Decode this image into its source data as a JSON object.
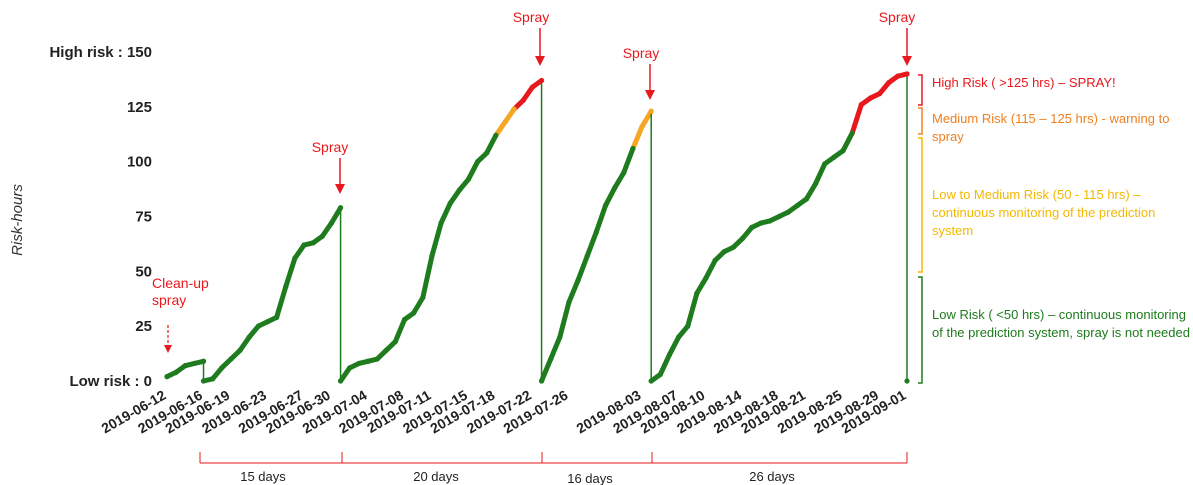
{
  "chart_data": {
    "type": "line",
    "y_label": "Risk-hours",
    "ylim": [
      0,
      150
    ],
    "yticks": [
      {
        "value": 0,
        "label": "Low risk : 0"
      },
      25,
      50,
      75,
      100,
      125,
      {
        "value": 150,
        "label": "High risk : 150"
      }
    ],
    "xlim": [
      "2019-06-12",
      "2019-09-01"
    ],
    "xticks": [
      "2019-06-12",
      "2019-06-16",
      "2019-06-19",
      "2019-06-23",
      "2019-06-27",
      "2019-06-30",
      "2019-07-04",
      "2019-07-08",
      "2019-07-11",
      "2019-07-15",
      "2019-07-18",
      "2019-07-22",
      "2019-07-26",
      "2019-08-03",
      "2019-08-07",
      "2019-08-10",
      "2019-08-14",
      "2019-08-18",
      "2019-08-21",
      "2019-08-25",
      "2019-08-29",
      "2019-09-01"
    ],
    "color": "#1e7b1e",
    "thresholds": [
      {
        "value": 115,
        "color": "#f5a623"
      },
      {
        "value": 125,
        "color": "#e8191e"
      }
    ],
    "x": [
      "2019-06-12",
      "2019-06-13",
      "2019-06-14",
      "2019-06-15",
      "2019-06-16",
      "2019-06-16",
      "2019-06-17",
      "2019-06-18",
      "2019-06-19",
      "2019-06-20",
      "2019-06-21",
      "2019-06-22",
      "2019-06-23",
      "2019-06-24",
      "2019-06-25",
      "2019-06-26",
      "2019-06-27",
      "2019-06-28",
      "2019-06-29",
      "2019-06-30",
      "2019-07-01",
      "2019-07-01",
      "2019-07-02",
      "2019-07-03",
      "2019-07-04",
      "2019-07-05",
      "2019-07-06",
      "2019-07-07",
      "2019-07-08",
      "2019-07-09",
      "2019-07-10",
      "2019-07-11",
      "2019-07-12",
      "2019-07-13",
      "2019-07-14",
      "2019-07-15",
      "2019-07-16",
      "2019-07-17",
      "2019-07-18",
      "2019-07-19",
      "2019-07-20",
      "2019-07-21",
      "2019-07-22",
      "2019-07-23",
      "2019-07-23",
      "2019-07-24",
      "2019-07-25",
      "2019-07-26",
      "2019-07-27",
      "2019-07-28",
      "2019-07-29",
      "2019-07-30",
      "2019-07-31",
      "2019-08-01",
      "2019-08-02",
      "2019-08-03",
      "2019-08-04",
      "2019-08-04",
      "2019-08-05",
      "2019-08-06",
      "2019-08-07",
      "2019-08-08",
      "2019-08-09",
      "2019-08-10",
      "2019-08-11",
      "2019-08-12",
      "2019-08-13",
      "2019-08-14",
      "2019-08-15",
      "2019-08-16",
      "2019-08-17",
      "2019-08-18",
      "2019-08-19",
      "2019-08-20",
      "2019-08-21",
      "2019-08-22",
      "2019-08-23",
      "2019-08-24",
      "2019-08-25",
      "2019-08-26",
      "2019-08-27",
      "2019-08-28",
      "2019-08-29",
      "2019-08-30",
      "2019-08-31",
      "2019-09-01",
      "2019-09-01"
    ],
    "values": [
      2,
      4,
      7,
      8,
      9,
      0,
      1,
      6,
      10,
      14,
      20,
      25,
      27,
      29,
      43,
      56,
      62,
      63,
      66,
      72,
      79,
      0,
      6,
      8,
      9,
      10,
      14,
      18,
      28,
      31,
      38,
      57,
      72,
      81,
      87,
      92,
      100,
      104,
      112,
      118,
      124,
      128,
      134,
      137,
      0,
      10,
      20,
      36,
      46,
      57,
      68,
      80,
      88,
      95,
      106,
      116,
      123,
      0,
      3,
      12,
      20,
      25,
      40,
      47,
      55,
      59,
      61,
      65,
      70,
      72,
      73,
      75,
      77,
      80,
      83,
      90,
      99,
      102,
      105,
      113,
      126,
      129,
      131,
      136,
      139,
      140,
      0
    ],
    "annotations": {
      "spray": [
        "Spray",
        "Spray",
        "Spray",
        "Spray"
      ],
      "cleanup": "Clean-up spray",
      "risk_levels": [
        "High Risk ( >125 hrs) – SPRAY!",
        "Medium Risk (115 – 125 hrs) - warning to spray",
        "Low to Medium Risk (50 - 115 hrs) – continuous monitoring of the prediction system",
        "Low Risk ( <50 hrs) – continuous monitoring of the prediction system, spray is not needed"
      ],
      "intervals": [
        "15 days",
        "20 days",
        "16 days",
        "26 days"
      ]
    }
  }
}
